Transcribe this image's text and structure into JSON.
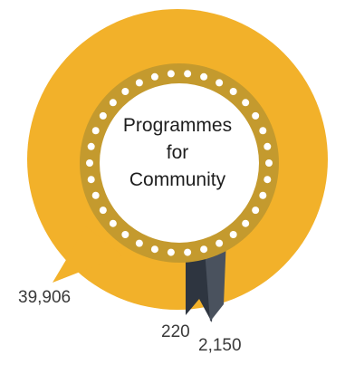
{
  "title_lines": [
    "Programmes",
    "for",
    "Community"
  ],
  "values": {
    "left_value": "39,906",
    "ribbon_value_a": "220",
    "ribbon_value_b": "2,150"
  },
  "colors": {
    "outer_ring": "#F2B12A",
    "inner_band": "#C49A2E",
    "dots": "#FFFFFF",
    "center": "#FFFFFF",
    "ribbon_dark": "#2E3540",
    "ribbon_mid": "#4A525E"
  },
  "icons": {
    "badge": "rosette-badge-icon",
    "ribbon": "ribbon-icon"
  }
}
